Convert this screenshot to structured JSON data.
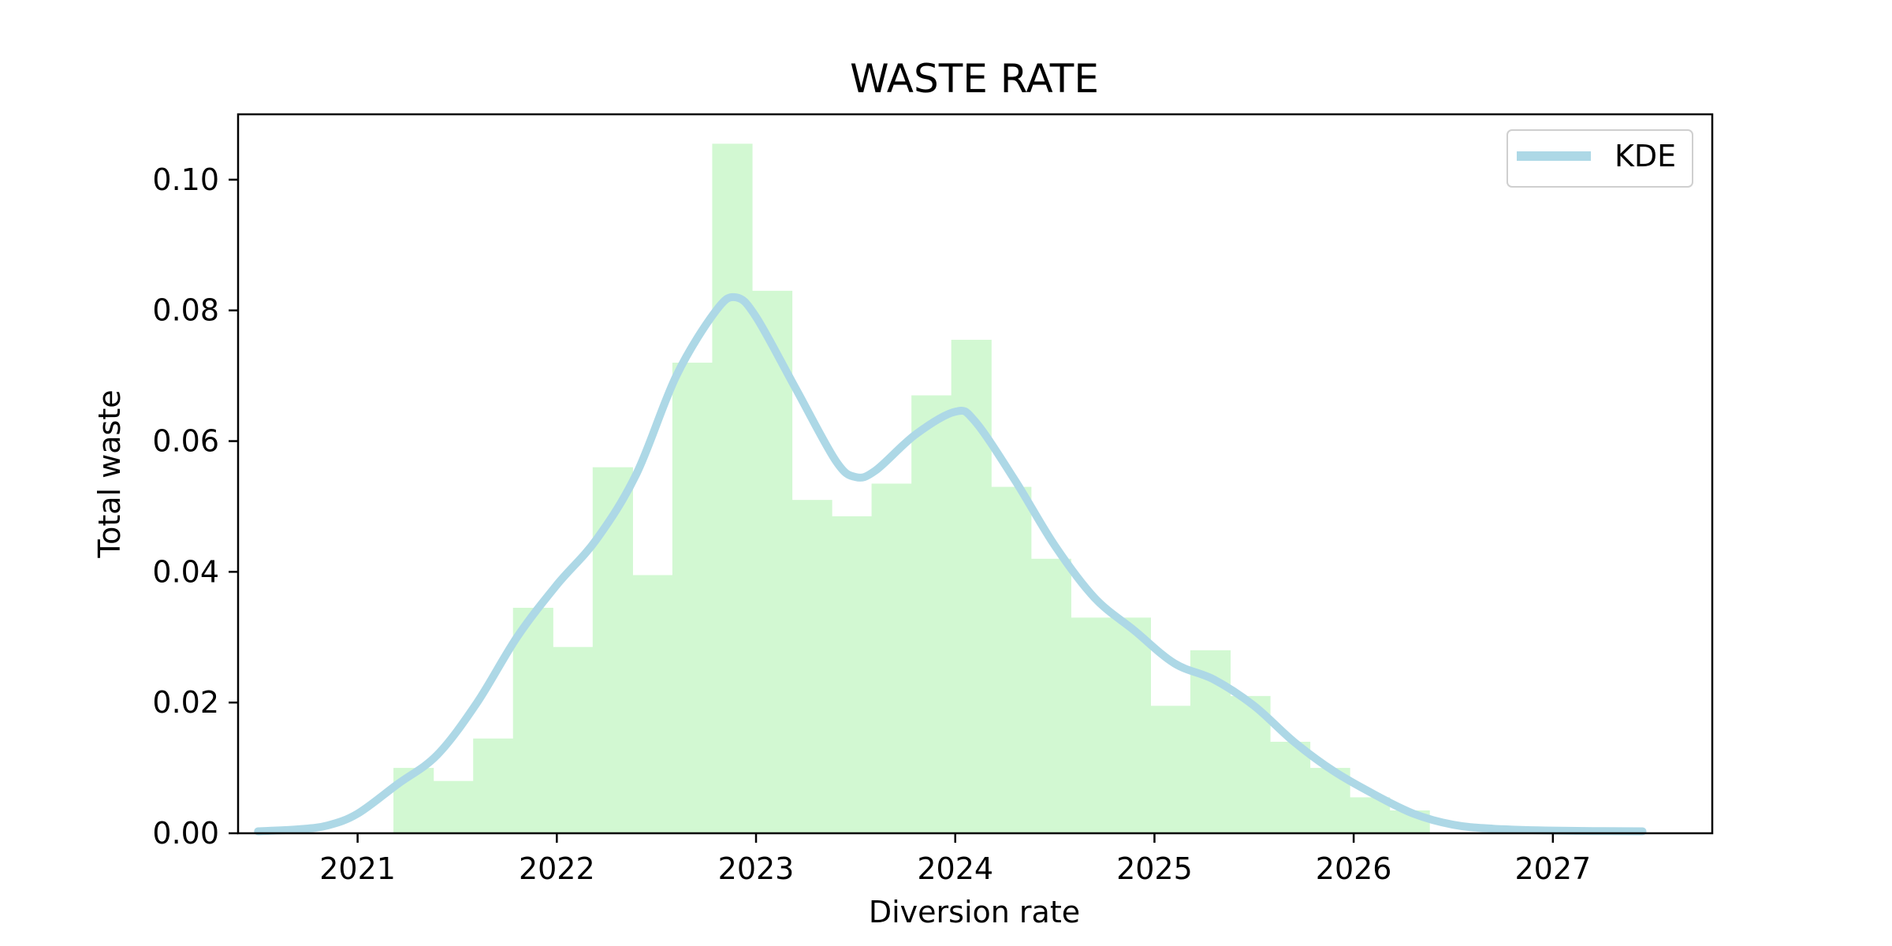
{
  "chart_data": {
    "type": "histogram",
    "title": "WASTE RATE",
    "xlabel": "Diversion rate",
    "ylabel": "Total waste",
    "xlim": [
      2020.4,
      2027.8
    ],
    "ylim": [
      0,
      0.11
    ],
    "x_ticks": [
      2021,
      2022,
      2023,
      2024,
      2025,
      2026,
      2027
    ],
    "y_ticks": [
      0.0,
      0.02,
      0.04,
      0.06,
      0.08,
      0.1
    ],
    "x_tick_labels": [
      "2021",
      "2022",
      "2023",
      "2024",
      "2025",
      "2026",
      "2027"
    ],
    "y_tick_labels": [
      "0.00",
      "0.02",
      "0.04",
      "0.06",
      "0.08",
      "0.10"
    ],
    "grid": false,
    "legend": {
      "position": "upper-right",
      "entries": [
        {
          "label": "KDE",
          "color": "#add8e6"
        }
      ]
    },
    "histogram": {
      "bin_start": 2021.18,
      "bin_width": 0.2,
      "color": "#d2f8d2",
      "densities": [
        0.01,
        0.008,
        0.0145,
        0.0345,
        0.0285,
        0.056,
        0.0395,
        0.072,
        0.1055,
        0.083,
        0.051,
        0.0485,
        0.0535,
        0.067,
        0.0755,
        0.053,
        0.042,
        0.033,
        0.033,
        0.0195,
        0.028,
        0.021,
        0.014,
        0.01,
        0.0055,
        0.0035
      ]
    },
    "kde": {
      "name": "KDE",
      "color": "#add8e6",
      "x": [
        2020.5,
        2020.7,
        2020.85,
        2021.0,
        2021.2,
        2021.4,
        2021.6,
        2021.8,
        2022.0,
        2022.2,
        2022.4,
        2022.6,
        2022.8,
        2022.9,
        2023.0,
        2023.2,
        2023.4,
        2023.5,
        2023.6,
        2023.8,
        2024.0,
        2024.1,
        2024.3,
        2024.5,
        2024.7,
        2024.9,
        2025.1,
        2025.3,
        2025.5,
        2025.7,
        2025.9,
        2026.1,
        2026.3,
        2026.5,
        2026.7,
        2027.0,
        2027.45
      ],
      "y": [
        0.0003,
        0.0006,
        0.0012,
        0.003,
        0.0075,
        0.012,
        0.02,
        0.03,
        0.038,
        0.045,
        0.055,
        0.07,
        0.08,
        0.082,
        0.079,
        0.068,
        0.057,
        0.0545,
        0.0555,
        0.061,
        0.0645,
        0.063,
        0.054,
        0.044,
        0.036,
        0.031,
        0.026,
        0.0235,
        0.0195,
        0.014,
        0.0095,
        0.006,
        0.003,
        0.0013,
        0.0007,
        0.0004,
        0.0003
      ]
    }
  }
}
